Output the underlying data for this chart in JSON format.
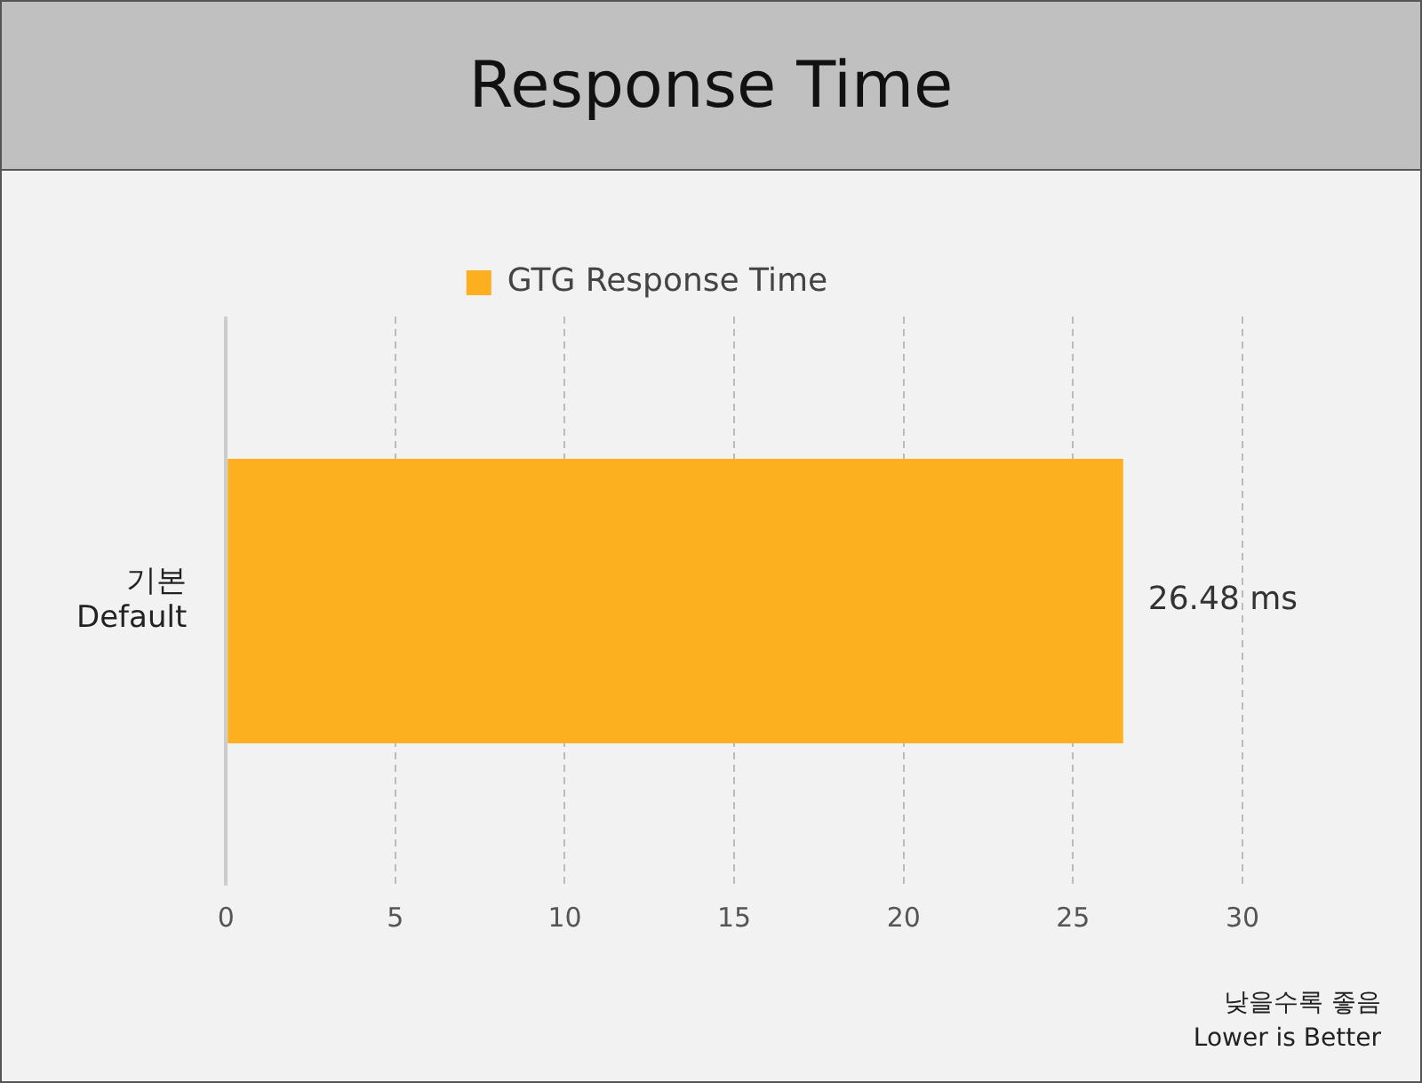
{
  "chart_data": {
    "type": "bar",
    "title": "Response Time",
    "orientation": "horizontal",
    "categories": [
      "기본\nDefault"
    ],
    "series": [
      {
        "name": "GTG Response Time",
        "color": "#fdb01f",
        "values": [
          26.48
        ]
      }
    ],
    "value_labels": [
      "26.48 ms"
    ],
    "xlim": [
      0,
      30
    ],
    "xticks": [
      0,
      5,
      10,
      15,
      20,
      25,
      30
    ],
    "grid": "x",
    "legend": "top",
    "annotations": [
      "낮을수록 좋음",
      "Lower is Better"
    ]
  }
}
